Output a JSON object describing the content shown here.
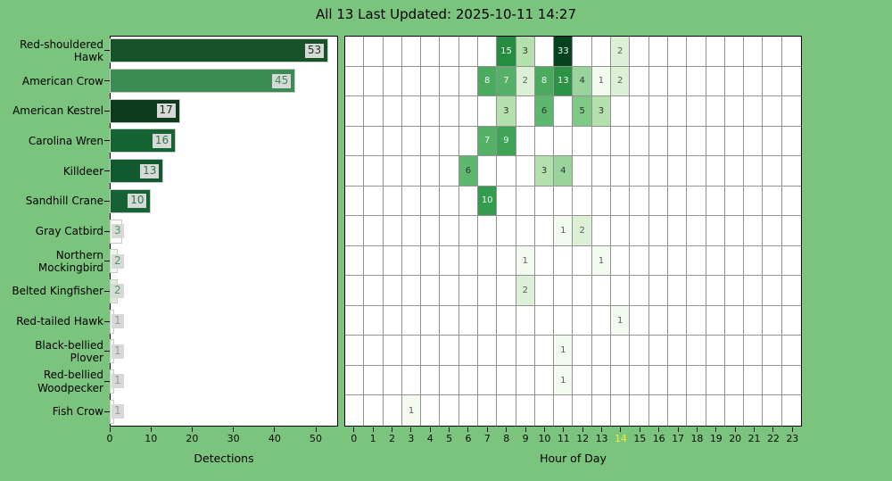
{
  "page": {
    "title": "All 13 Last Updated: 2025-10-11 14:27",
    "background_color": "#7ac47d"
  },
  "chart_data": [
    {
      "type": "bar",
      "orientation": "horizontal",
      "title": "",
      "xlabel": "Detections",
      "ylabel": "",
      "xticks": [
        0,
        10,
        20,
        30,
        40,
        50
      ],
      "xlim": [
        0,
        55.4
      ],
      "categories": [
        "Red-shouldered Hawk",
        "American Crow",
        "American Kestrel",
        "Carolina Wren",
        "Killdeer",
        "Sandhill Crane",
        "Gray Catbird",
        "Northern Mockingbird",
        "Belted Kingfisher",
        "Red-tailed Hawk",
        "Black-bellied Plover",
        "Red-bellied Woodpecker",
        "Fish Crow"
      ],
      "values": [
        53,
        45,
        17,
        16,
        13,
        10,
        3,
        2,
        2,
        1,
        1,
        1,
        1
      ],
      "bar_colors": [
        "#175329",
        "#3a8c52",
        "#0e3b1e",
        "#146434",
        "#11592f",
        "#156334",
        "#f8fbf6",
        "#eef7ea",
        "#d8edd2",
        "#fcfdfb",
        "#f3f9f0",
        "#eef6ea",
        "#f6faf4"
      ],
      "value_label_colors": [
        "#12391f",
        "#3a8c52",
        "#0d2e17",
        "#257a43",
        "#257a43",
        "#257a43",
        "#4a9c63",
        "#4a9c63",
        "#4a9c63",
        "#8fa294",
        "#8fa294",
        "#8fa294",
        "#8fa294"
      ],
      "value_label_bg": "#d8d8d8"
    },
    {
      "type": "heatmap",
      "title": "",
      "xlabel": "Hour of Day",
      "hour_ticks": [
        "0",
        "1",
        "2",
        "3",
        "4",
        "5",
        "6",
        "7",
        "8",
        "9",
        "10",
        "11",
        "12",
        "13",
        "14",
        "15",
        "16",
        "17",
        "18",
        "19",
        "20",
        "21",
        "22",
        "23"
      ],
      "current_hour": "14",
      "current_hour_color": "#f2ee30",
      "grid_color": "#929292",
      "rows": [
        {
          "species": "Red-shouldered Hawk",
          "cells": [
            {
              "hour": 8,
              "value": 15
            },
            {
              "hour": 9,
              "value": 3
            },
            {
              "hour": 11,
              "value": 33
            },
            {
              "hour": 14,
              "value": 2
            }
          ]
        },
        {
          "species": "American Crow",
          "cells": [
            {
              "hour": 7,
              "value": 8
            },
            {
              "hour": 8,
              "value": 7
            },
            {
              "hour": 9,
              "value": 2
            },
            {
              "hour": 10,
              "value": 8
            },
            {
              "hour": 11,
              "value": 13
            },
            {
              "hour": 12,
              "value": 4
            },
            {
              "hour": 13,
              "value": 1
            },
            {
              "hour": 14,
              "value": 2
            }
          ]
        },
        {
          "species": "American Kestrel",
          "cells": [
            {
              "hour": 8,
              "value": 3
            },
            {
              "hour": 10,
              "value": 6
            },
            {
              "hour": 12,
              "value": 5
            },
            {
              "hour": 13,
              "value": 3
            }
          ]
        },
        {
          "species": "Carolina Wren",
          "cells": [
            {
              "hour": 7,
              "value": 7
            },
            {
              "hour": 8,
              "value": 9
            }
          ]
        },
        {
          "species": "Killdeer",
          "cells": [
            {
              "hour": 6,
              "value": 6
            },
            {
              "hour": 10,
              "value": 3
            },
            {
              "hour": 11,
              "value": 4
            }
          ]
        },
        {
          "species": "Sandhill Crane",
          "cells": [
            {
              "hour": 7,
              "value": 10
            }
          ]
        },
        {
          "species": "Gray Catbird",
          "cells": [
            {
              "hour": 11,
              "value": 1
            },
            {
              "hour": 12,
              "value": 2
            }
          ]
        },
        {
          "species": "Northern Mockingbird",
          "cells": [
            {
              "hour": 9,
              "value": 1
            },
            {
              "hour": 13,
              "value": 1
            }
          ]
        },
        {
          "species": "Belted Kingfisher",
          "cells": [
            {
              "hour": 9,
              "value": 2
            }
          ]
        },
        {
          "species": "Red-tailed Hawk",
          "cells": [
            {
              "hour": 14,
              "value": 1
            }
          ]
        },
        {
          "species": "Black-bellied Plover",
          "cells": [
            {
              "hour": 11,
              "value": 1
            }
          ]
        },
        {
          "species": "Red-bellied Woodpecker",
          "cells": [
            {
              "hour": 11,
              "value": 1
            }
          ]
        },
        {
          "species": "Fish Crow",
          "cells": [
            {
              "hour": 3,
              "value": 1
            }
          ]
        }
      ],
      "value_colors": {
        "1": "#f3faf0",
        "2": "#dcf0d6",
        "3": "#b3e0ad",
        "4": "#98d49c",
        "5": "#7fc987",
        "6": "#5eb76e",
        "7": "#55b167",
        "8": "#4aab5e",
        "9": "#3fa455",
        "10": "#339b4e",
        "13": "#2a9346",
        "15": "#258d42",
        "33": "#06431d"
      }
    }
  ]
}
